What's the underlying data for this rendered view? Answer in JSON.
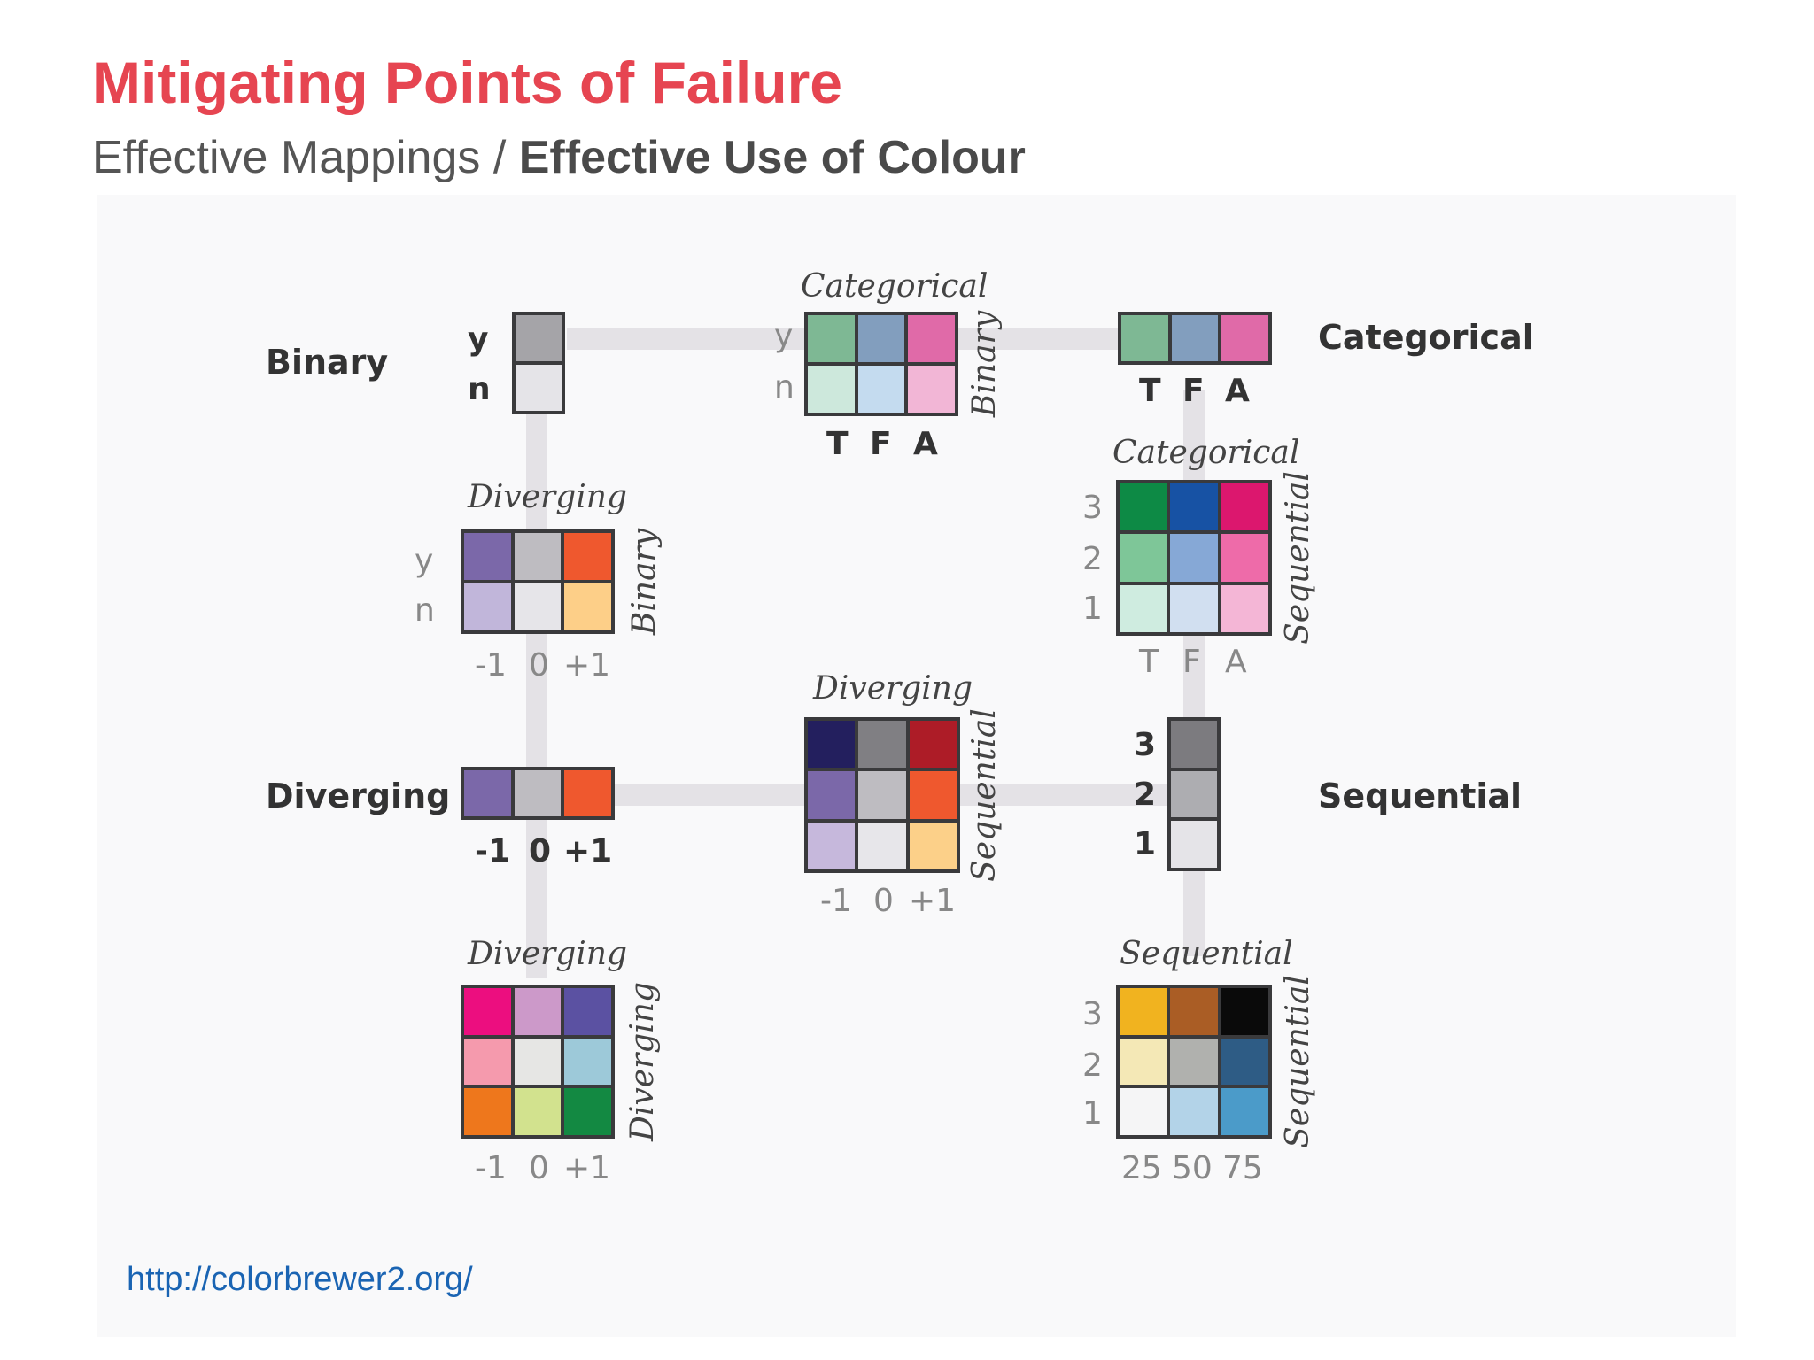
{
  "title": "Mitigating Points of Failure",
  "subtitle": {
    "prefix": "Effective Mappings / ",
    "bold": "Effective Use of Colour"
  },
  "url": "http://colorbrewer2.org/",
  "main_labels": {
    "binary": "Binary",
    "categorical": "Categorical",
    "diverging": "Diverging",
    "sequential": "Sequential"
  },
  "axis_labels": {
    "y": "y",
    "n": "n",
    "T": "T",
    "F": "F",
    "A": "A",
    "m1": "-1",
    "z": "0",
    "p1": "+1",
    "s1": "1",
    "s2": "2",
    "s3": "3",
    "v25": "25",
    "v50": "50",
    "v75": "75"
  },
  "legends": {
    "binary": {
      "colors": [
        "#a5a4a8",
        "#e5e4e8"
      ]
    },
    "categorical": {
      "colors": [
        "#7eb894",
        "#829ebe",
        "#e06aa8"
      ]
    },
    "diverging": {
      "colors": [
        "#7b68a9",
        "#bebcc1",
        "#ef582e"
      ]
    },
    "sequential": {
      "colors": [
        "#7c7b7f",
        "#adadb1",
        "#e5e4e8"
      ]
    }
  },
  "grids": {
    "binary_categorical": {
      "top_label": "Categorical",
      "side_label": "Binary",
      "rows": [
        [
          "#7eb894",
          "#829ebe",
          "#e06aa8"
        ],
        [
          "#cde8dc",
          "#c4dbef",
          "#f2b6d6"
        ]
      ]
    },
    "binary_diverging": {
      "top_label": "Diverging",
      "side_label": "Binary",
      "rows": [
        [
          "#7b68a9",
          "#bebcc1",
          "#ef582e"
        ],
        [
          "#c1b6da",
          "#e6e5e9",
          "#fdcf88"
        ]
      ]
    },
    "categorical_sequential": {
      "top_label": "Categorical",
      "side_label": "Sequential",
      "rows": [
        [
          "#0d8a45",
          "#1752a4",
          "#dc176e"
        ],
        [
          "#7ec698",
          "#86a8d6",
          "#ee6ba9"
        ],
        [
          "#cfece0",
          "#d1dff0",
          "#f4b6d6"
        ]
      ]
    },
    "diverging_sequential": {
      "top_label": "Diverging",
      "side_label": "Sequential",
      "rows": [
        [
          "#231f5e",
          "#807f83",
          "#ad1c27"
        ],
        [
          "#7b68a9",
          "#bebcc1",
          "#ef582e"
        ],
        [
          "#c6b8dc",
          "#e7e6ea",
          "#fcd089"
        ]
      ]
    },
    "diverging_diverging": {
      "top_label": "Diverging",
      "side_label": "Diverging",
      "rows": [
        [
          "#ec0e7f",
          "#cc99c9",
          "#5b51a2"
        ],
        [
          "#f59aad",
          "#e6e6e4",
          "#9dc9d9"
        ],
        [
          "#ee771c",
          "#d2e28e",
          "#138942"
        ]
      ]
    },
    "sequential_sequential": {
      "top_label": "Sequential",
      "side_label": "Sequential",
      "rows": [
        [
          "#f1b31f",
          "#aa5d25",
          "#0a0a0a"
        ],
        [
          "#f4e8b6",
          "#b0b1ae",
          "#2e5c85"
        ],
        [
          "#f5f5f6",
          "#b3d3e8",
          "#4b9bc9"
        ]
      ]
    }
  }
}
